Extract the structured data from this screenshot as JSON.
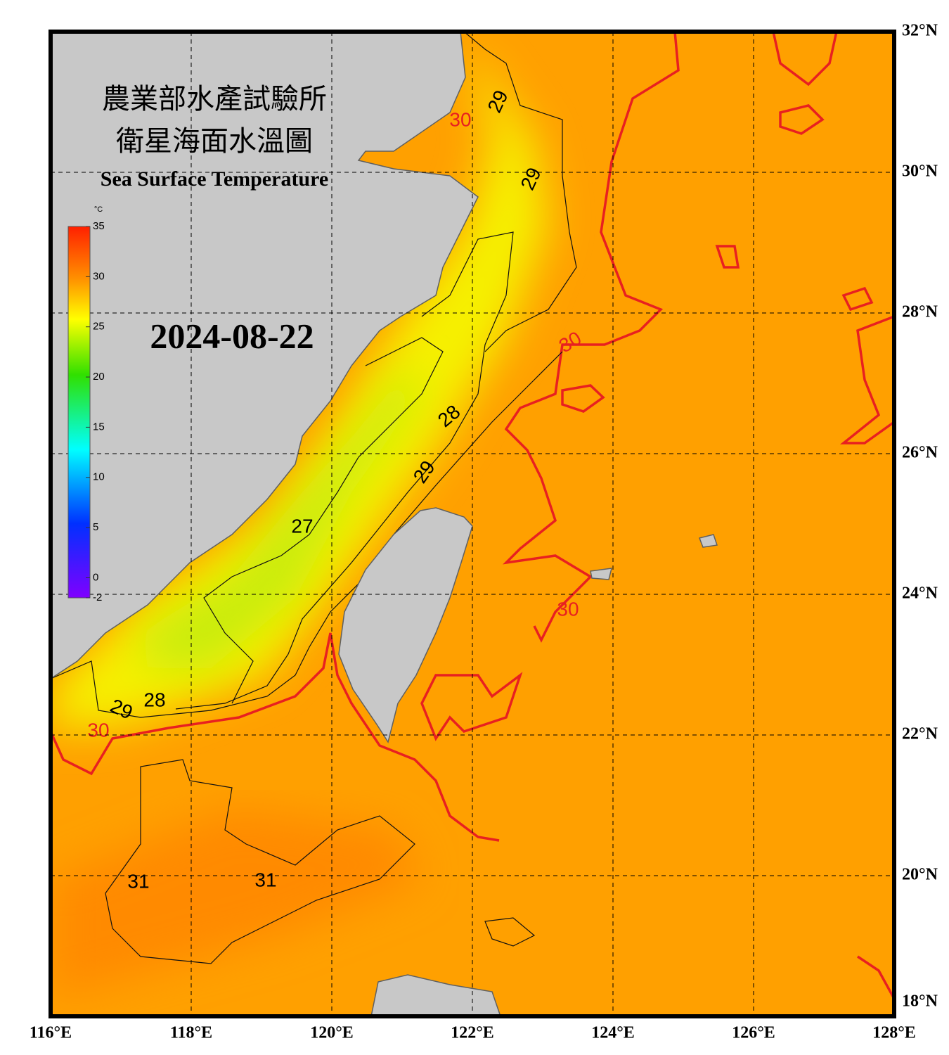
{
  "header": {
    "title_zh_1": "農業部水產試驗所",
    "title_zh_2": "衛星海面水溫圖",
    "title_en": "Sea Surface Temperature",
    "date": "2024-08-22"
  },
  "colorbar": {
    "unit": "°C",
    "lim": [
      -2,
      35
    ],
    "ticks": [
      -2,
      0,
      5,
      10,
      15,
      20,
      25,
      30,
      35
    ]
  },
  "map": {
    "lon_lim": [
      116,
      128
    ],
    "lat_lim": [
      18,
      32
    ],
    "lon_ticks": [
      {
        "value": 116,
        "label": "116°E"
      },
      {
        "value": 118,
        "label": "118°E"
      },
      {
        "value": 120,
        "label": "120°E"
      },
      {
        "value": 122,
        "label": "122°E"
      },
      {
        "value": 124,
        "label": "124°E"
      },
      {
        "value": 126,
        "label": "126°E"
      },
      {
        "value": 128,
        "label": "128°E"
      }
    ],
    "lat_ticks": [
      {
        "value": 18,
        "label": "18°N"
      },
      {
        "value": 20,
        "label": "20°N"
      },
      {
        "value": 22,
        "label": "22°N"
      },
      {
        "value": 24,
        "label": "24°N"
      },
      {
        "value": 26,
        "label": "26°N"
      },
      {
        "value": 28,
        "label": "28°N"
      },
      {
        "value": 30,
        "label": "30°N"
      },
      {
        "value": 32,
        "label": "32°N"
      }
    ],
    "contour_labels": [
      29,
      30,
      29,
      30,
      28,
      29,
      27,
      30,
      29,
      28,
      30,
      31,
      31
    ]
  }
}
